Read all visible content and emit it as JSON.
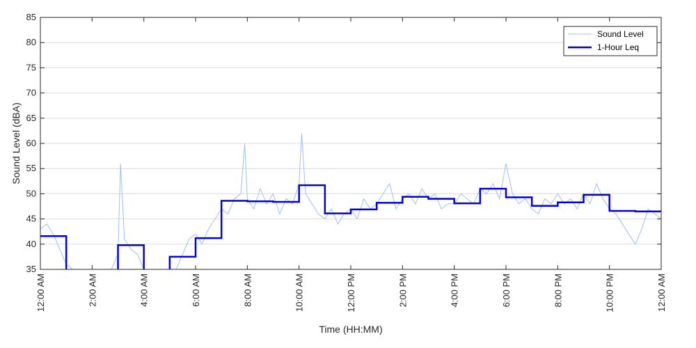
{
  "chart_data": {
    "type": "line",
    "title": "",
    "xlabel": "Time (HH:MM)",
    "ylabel": "Sound Level (dBA)",
    "xlim": [
      0,
      24
    ],
    "ylim": [
      35,
      85
    ],
    "grid": "horizontal",
    "legend_position": "top-right",
    "y_ticks": [
      35,
      40,
      45,
      50,
      55,
      60,
      65,
      70,
      75,
      80,
      85
    ],
    "x_ticks": [
      {
        "hour": 0,
        "label": "12:00 AM"
      },
      {
        "hour": 2,
        "label": "2:00 AM"
      },
      {
        "hour": 4,
        "label": "4:00 AM"
      },
      {
        "hour": 6,
        "label": "6:00 AM"
      },
      {
        "hour": 8,
        "label": "8:00 AM"
      },
      {
        "hour": 10,
        "label": "10:00 AM"
      },
      {
        "hour": 12,
        "label": "12:00 PM"
      },
      {
        "hour": 14,
        "label": "2:00 PM"
      },
      {
        "hour": 16,
        "label": "4:00 PM"
      },
      {
        "hour": 18,
        "label": "6:00 PM"
      },
      {
        "hour": 20,
        "label": "8:00 PM"
      },
      {
        "hour": 22,
        "label": "10:00 PM"
      },
      {
        "hour": 24,
        "label": "12:00 AM"
      }
    ],
    "series": [
      {
        "name": "Sound Level",
        "style": "thin-line",
        "color": "#9fbff5",
        "x": [
          0.0,
          0.25,
          0.5,
          0.75,
          1.0,
          1.25,
          1.5,
          1.75,
          2.0,
          2.25,
          2.5,
          2.75,
          3.0,
          3.1,
          3.25,
          3.5,
          3.75,
          4.0,
          4.25,
          4.5,
          4.75,
          5.0,
          5.25,
          5.5,
          5.75,
          6.0,
          6.25,
          6.5,
          6.75,
          7.0,
          7.25,
          7.5,
          7.75,
          7.9,
          8.0,
          8.25,
          8.5,
          8.75,
          9.0,
          9.25,
          9.5,
          9.75,
          10.0,
          10.1,
          10.25,
          10.5,
          10.75,
          11.0,
          11.25,
          11.5,
          11.75,
          12.0,
          12.25,
          12.5,
          12.75,
          13.0,
          13.25,
          13.5,
          13.75,
          14.0,
          14.25,
          14.5,
          14.75,
          15.0,
          15.25,
          15.5,
          15.75,
          16.0,
          16.25,
          16.5,
          16.75,
          17.0,
          17.25,
          17.5,
          17.75,
          18.0,
          18.25,
          18.5,
          18.75,
          19.0,
          19.25,
          19.5,
          19.75,
          20.0,
          20.25,
          20.5,
          20.75,
          21.0,
          21.25,
          21.5,
          21.75,
          22.0,
          22.25,
          22.5,
          22.75,
          23.0,
          23.25,
          23.5,
          23.75,
          24.0
        ],
        "values": [
          43,
          44,
          42,
          39,
          36,
          35,
          35,
          35,
          35,
          35,
          35,
          35,
          38,
          56,
          41,
          39,
          38,
          35,
          35,
          35,
          35,
          35,
          35,
          38,
          41,
          42,
          40,
          43,
          45,
          47,
          46,
          49,
          50,
          60,
          49,
          47,
          51,
          48,
          50,
          46,
          49,
          48,
          52,
          62,
          50,
          48,
          46,
          45,
          47,
          44,
          46,
          47,
          45,
          49,
          47,
          48,
          50,
          52,
          47,
          49,
          50,
          48,
          51,
          49,
          50,
          47,
          48,
          48,
          50,
          49,
          48,
          51,
          50,
          52,
          49,
          56,
          50,
          48,
          49,
          47,
          46,
          49,
          48,
          50,
          48,
          49,
          47,
          50,
          48,
          52,
          49,
          47,
          46,
          44,
          42,
          40,
          43,
          47,
          46,
          45
        ]
      },
      {
        "name": "1-Hour Leq",
        "style": "step",
        "color": "#0000e0",
        "hours": [
          0,
          1,
          2,
          3,
          4,
          5,
          6,
          7,
          8,
          9,
          10,
          11,
          12,
          13,
          14,
          15,
          16,
          17,
          18,
          19,
          20,
          21,
          22,
          23
        ],
        "values": [
          41.6,
          null,
          null,
          39.8,
          null,
          37.5,
          41.2,
          48.6,
          48.5,
          48.4,
          51.7,
          46.1,
          46.9,
          48.2,
          49.4,
          49.0,
          48.1,
          51.0,
          49.3,
          47.6,
          48.3,
          49.8,
          46.6,
          46.5
        ]
      }
    ]
  }
}
